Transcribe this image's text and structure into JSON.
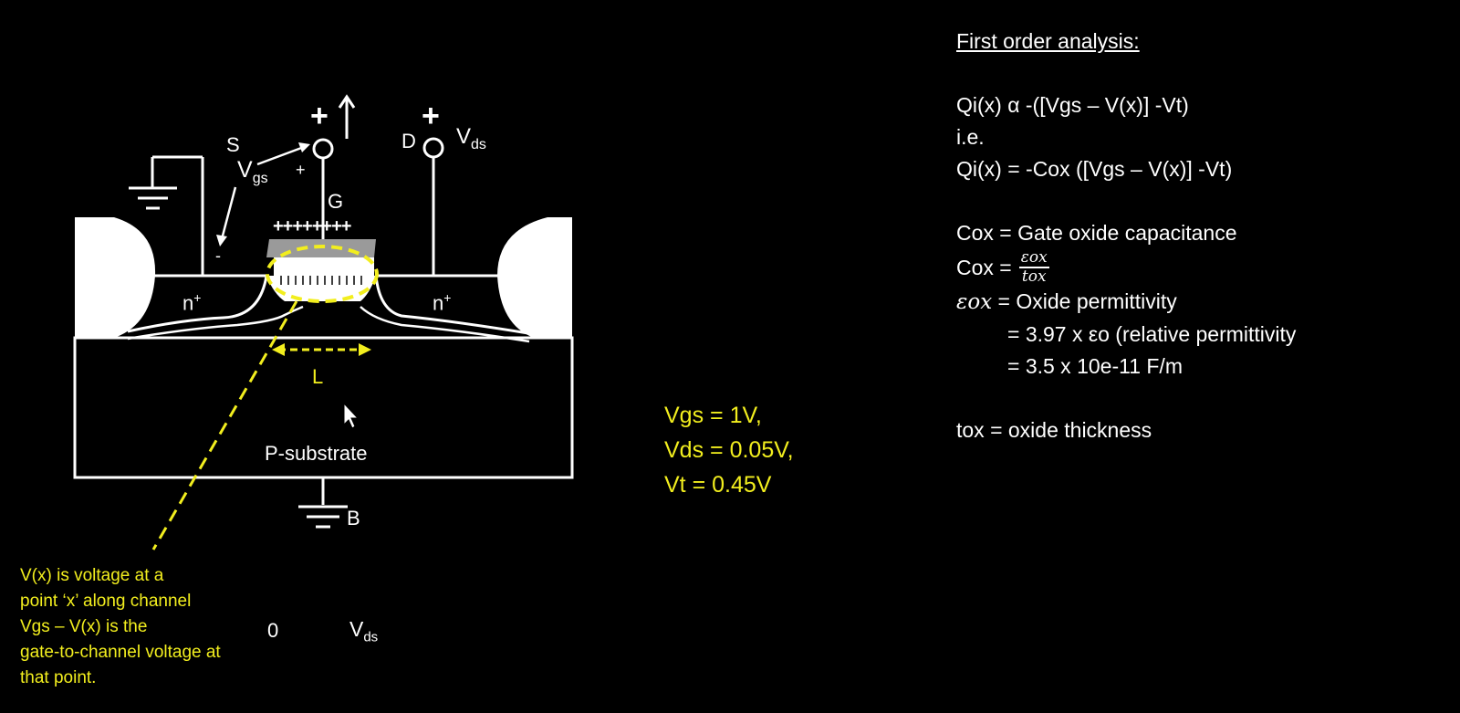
{
  "diagram": {
    "terminal_s": "S",
    "terminal_d": "D",
    "terminal_g": "G",
    "terminal_b": "B",
    "vgs_main": "V",
    "vgs_sub": "gs",
    "vds_main": "V",
    "vds_sub": "ds",
    "plus_big": "+",
    "plus_small": "+",
    "minus": "-",
    "gate_charges": "++++++++",
    "n_left": "n",
    "n_right": "n",
    "n_sup": "+",
    "length_label": "L",
    "substrate_label": "P-substrate",
    "axis_zero": "0",
    "axis_vds_main": "V",
    "axis_vds_sub": "ds",
    "colors": {
      "annotation": "#f2ee1e",
      "gate_oxide": "#9a9a9a",
      "background": "#000000"
    }
  },
  "note": {
    "lines": [
      "V(x) is voltage at a",
      "point ‘x’ along channel",
      "Vgs – V(x) is the",
      "gate-to-channel voltage at",
      "that point."
    ]
  },
  "values": {
    "lines": [
      "Vgs = 1V,",
      "Vds = 0.05V,",
      "Vt = 0.45V"
    ]
  },
  "analysis": {
    "heading": "First order analysis:",
    "eq1": "Qi(x) α -([Vgs – V(x)] -Vt)",
    "ie": "i.e.",
    "eq2": "Qi(x) = -Cox ([Vgs – V(x)] -Vt)",
    "cox_def": "Cox = Gate oxide capacitance",
    "cox_eq_lhs": "Cox =",
    "frac_num": "εox",
    "frac_den": "tox",
    "eps_symbol": "εox",
    "eps_def": " = Oxide permittivity",
    "eps_val1": "= 3.97 x εo (relative permittivity",
    "eps_val2": "= 3.5 x 10e-11 F/m",
    "tox_def": "tox = oxide thickness"
  }
}
